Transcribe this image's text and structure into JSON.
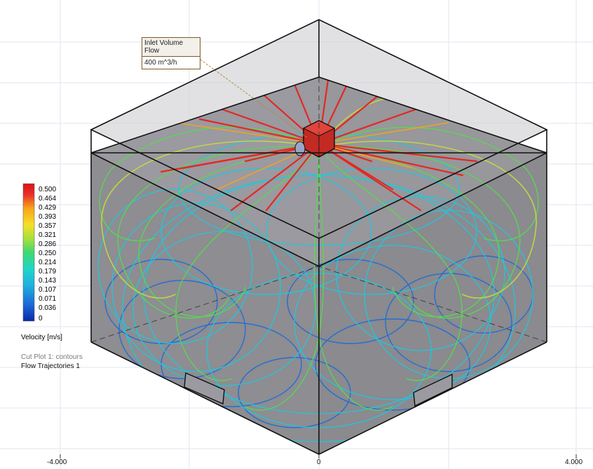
{
  "callout": {
    "title": "Inlet Volume Flow",
    "value": "400 m^3/h"
  },
  "legend": {
    "values": [
      "0.500",
      "0.464",
      "0.429",
      "0.393",
      "0.357",
      "0.321",
      "0.286",
      "0.250",
      "0.214",
      "0.179",
      "0.143",
      "0.107",
      "0.071",
      "0.036",
      "0"
    ],
    "caption": "Velocity [m/s]",
    "colors": [
      "#0a2aa8",
      "#1a6ad8",
      "#1fb0e0",
      "#1fd6c8",
      "#40d870",
      "#a8e03a",
      "#f4e02a",
      "#f8a41a",
      "#e8302a",
      "#d8141a"
    ]
  },
  "plot_info": {
    "line1": "Cut Plot 1: contours",
    "line2": "Flow Trajectories 1"
  },
  "axis": {
    "left_label": "-4.000",
    "center_label": "0",
    "right_label": "4.000"
  }
}
